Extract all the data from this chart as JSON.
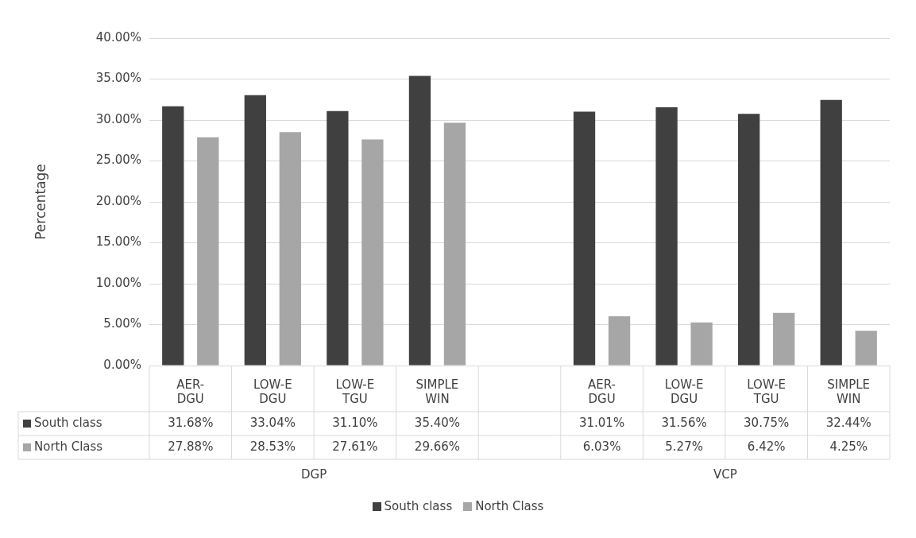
{
  "chart_data": {
    "type": "bar",
    "ylabel": "Percentage",
    "categories": [
      "AER-DGU",
      "LOW-E DGU",
      "LOW-E TGU",
      "SIMPLE WIN",
      null,
      "AER-DGU",
      "LOW-E DGU",
      "LOW-E TGU",
      "SIMPLE WIN"
    ],
    "series": [
      {
        "name": "South class",
        "color": "#404040",
        "values": [
          31.68,
          33.04,
          31.1,
          35.4,
          null,
          31.01,
          31.56,
          30.75,
          32.44
        ],
        "value_labels": [
          "31.68%",
          "33.04%",
          "31.10%",
          "35.40%",
          null,
          "31.01%",
          "31.56%",
          "30.75%",
          "32.44%"
        ]
      },
      {
        "name": "North Class",
        "color": "#a6a6a6",
        "values": [
          27.88,
          28.53,
          27.61,
          29.66,
          null,
          6.03,
          5.27,
          6.42,
          4.25
        ],
        "value_labels": [
          "27.88%",
          "28.53%",
          "27.61%",
          "29.66%",
          null,
          "6.03%",
          "5.27%",
          "6.42%",
          "4.25%"
        ]
      }
    ],
    "ylim": [
      0,
      40
    ],
    "yticks": [
      {
        "value": 0,
        "label": "0.00%"
      },
      {
        "value": 5,
        "label": "5.00%"
      },
      {
        "value": 10,
        "label": "10.00%"
      },
      {
        "value": 15,
        "label": "15.00%"
      },
      {
        "value": 20,
        "label": "20.00%"
      },
      {
        "value": 25,
        "label": "25.00%"
      },
      {
        "value": 30,
        "label": "30.00%"
      },
      {
        "value": 35,
        "label": "35.00%"
      },
      {
        "value": 40,
        "label": "40.00%"
      }
    ],
    "annotations": [
      "DGP",
      "VCP"
    ],
    "grid": "y",
    "legend": "bottom"
  }
}
